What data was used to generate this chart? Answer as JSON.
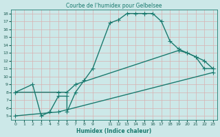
{
  "title": "Courbe de l'humidex pour Gelbelsee",
  "xlabel": "Humidex (Indice chaleur)",
  "bg_color": "#cce8e8",
  "grid_color": "#b0d4d4",
  "line_color": "#1a7a6e",
  "xlim": [
    -0.5,
    23.5
  ],
  "ylim": [
    4.5,
    18.5
  ],
  "xticks": [
    0,
    1,
    2,
    3,
    4,
    5,
    6,
    7,
    8,
    9,
    11,
    12,
    13,
    14,
    15,
    16,
    17,
    18,
    19,
    20,
    21,
    22,
    23
  ],
  "yticks": [
    5,
    6,
    7,
    8,
    9,
    10,
    11,
    12,
    13,
    14,
    15,
    16,
    17,
    18
  ],
  "line1_x": [
    0,
    2,
    3,
    4,
    5,
    6,
    6,
    7,
    8,
    9,
    11,
    12,
    13,
    14,
    15,
    15,
    16,
    17,
    18,
    19,
    20,
    21,
    22,
    23
  ],
  "line1_y": [
    8,
    9,
    5,
    5.5,
    7.5,
    7.5,
    5.5,
    8,
    9.5,
    11,
    16.8,
    17.2,
    18,
    18,
    18,
    18,
    18,
    17,
    14.5,
    13.5,
    13,
    12.5,
    11,
    11
  ],
  "line2_x": [
    0,
    5,
    6,
    7,
    19,
    20,
    21,
    22,
    23
  ],
  "line2_y": [
    8,
    8,
    8,
    9,
    13.3,
    13,
    12.5,
    12,
    11
  ],
  "line3_x": [
    0,
    5,
    23
  ],
  "line3_y": [
    5,
    5.5,
    10.5
  ],
  "linewidth": 1.0
}
